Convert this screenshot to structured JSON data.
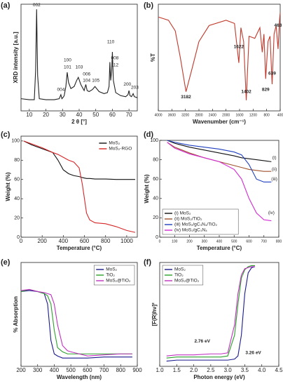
{
  "chart_data": [
    {
      "type": "line",
      "panel": "(a)",
      "xlabel": "2 θ [°]",
      "ylabel": "XRD intensity [a.u.]",
      "xlim": [
        5,
        75
      ],
      "xticks": [
        10,
        20,
        30,
        40,
        50,
        60,
        70
      ],
      "ylim": [
        0,
        105
      ],
      "x": [
        5,
        10,
        13,
        13.8,
        14.4,
        15,
        16,
        20,
        25,
        28,
        29,
        29.6,
        30.2,
        31,
        32,
        32.8,
        33.6,
        35,
        37,
        38.5,
        39.5,
        41,
        43,
        44,
        44.8,
        46,
        48,
        49.5,
        52,
        55,
        57,
        58,
        58.5,
        59,
        59.6,
        60,
        60.6,
        62,
        65,
        68,
        69.4,
        70,
        70.6,
        71.5,
        72.5,
        73.2,
        75
      ],
      "series": [
        {
          "name": "XRD",
          "color": "#222222",
          "values": [
            12,
            11,
            11,
            40,
            100,
            35,
            12,
            11,
            11,
            12,
            16,
            12,
            13,
            15,
            24,
            38,
            28,
            22,
            24,
            30,
            33,
            26,
            20,
            26,
            20,
            19,
            21,
            24,
            19,
            17,
            18,
            24,
            48,
            30,
            40,
            58,
            30,
            18,
            15,
            14,
            16,
            20,
            15,
            14,
            17,
            14,
            13
          ]
        }
      ],
      "annotations": [
        {
          "text": "002",
          "x": 14.4,
          "y": 104
        },
        {
          "text": "004",
          "x": 29,
          "y": 21
        },
        {
          "text": "100",
          "x": 33,
          "y": 50
        },
        {
          "text": "101",
          "x": 33,
          "y": 43
        },
        {
          "text": "103",
          "x": 40,
          "y": 43
        },
        {
          "text": "006",
          "x": 44.5,
          "y": 36
        },
        {
          "text": "104",
          "x": 44.5,
          "y": 30
        },
        {
          "text": "105",
          "x": 50,
          "y": 30
        },
        {
          "text": "110",
          "x": 59,
          "y": 68
        },
        {
          "text": "008",
          "x": 61.5,
          "y": 52
        },
        {
          "text": "112",
          "x": 61.5,
          "y": 45
        },
        {
          "text": "200",
          "x": 69,
          "y": 26
        },
        {
          "text": "203",
          "x": 73.5,
          "y": 23
        }
      ]
    },
    {
      "type": "line",
      "panel": "(b)",
      "xlabel": "Wavenumber (cm⁻¹)",
      "ylabel": "%T",
      "xlim": [
        4000,
        400
      ],
      "xticks": [
        4000,
        3600,
        3200,
        2800,
        2400,
        2000,
        1600,
        1200,
        800,
        400
      ],
      "ylim": [
        0,
        100
      ],
      "x": [
        4000,
        3700,
        3500,
        3350,
        3182,
        3000,
        2800,
        2500,
        2000,
        1750,
        1622,
        1560,
        1480,
        1402,
        1320,
        1150,
        1000,
        930,
        880,
        829,
        760,
        700,
        639,
        580,
        520,
        463,
        420,
        400
      ],
      "series": [
        {
          "name": "FTIR",
          "color": "#c0392b",
          "values": [
            88,
            85,
            75,
            50,
            18,
            40,
            65,
            80,
            85,
            82,
            45,
            78,
            65,
            10,
            70,
            68,
            78,
            55,
            72,
            30,
            65,
            70,
            25,
            72,
            80,
            58,
            85,
            92
          ]
        }
      ],
      "annotations": [
        {
          "text": "3182",
          "x": 3182,
          "y": 13,
          "color": "#1f3fa0"
        },
        {
          "text": "1622",
          "x": 1622,
          "y": 60,
          "color": "#1f3fa0"
        },
        {
          "text": "1402",
          "x": 1402,
          "y": 18,
          "color": "#1f3fa0"
        },
        {
          "text": "829",
          "x": 829,
          "y": 20,
          "color": "#1f3fa0"
        },
        {
          "text": "639",
          "x": 639,
          "y": 35,
          "color": "#1f3fa0"
        },
        {
          "text": "463",
          "x": 463,
          "y": 80,
          "color": "#1f3fa0"
        }
      ]
    },
    {
      "type": "line",
      "panel": "(c)",
      "xlabel": "Temperature (°C)",
      "ylabel": "Weight (%)",
      "xlim": [
        0,
        1100
      ],
      "xticks": [
        0,
        200,
        400,
        600,
        800,
        1000
      ],
      "ylim": [
        0,
        105
      ],
      "yticks": [
        0,
        20,
        40,
        60,
        80,
        100
      ],
      "legend": "upper-right",
      "legend_box": false,
      "x": [
        25,
        100,
        200,
        300,
        350,
        400,
        450,
        500,
        550,
        580,
        600,
        620,
        650,
        700,
        800,
        900,
        1000,
        1080
      ],
      "series": [
        {
          "name": "MoS₂",
          "color": "#111111",
          "values": [
            100,
            96,
            92,
            88,
            80,
            70,
            66,
            64,
            63,
            62,
            61.5,
            61,
            61,
            60.5,
            60.5,
            60,
            60,
            60
          ]
        },
        {
          "name": "MoS₂-RGO",
          "color": "#d62728",
          "values": [
            100,
            97,
            93,
            88,
            86,
            83,
            80,
            78,
            72,
            55,
            40,
            25,
            18,
            15,
            14,
            11,
            7,
            5
          ]
        }
      ]
    },
    {
      "type": "line",
      "panel": "(d)",
      "xlabel": "Temperature (°C)",
      "ylabel": "Weight (%)",
      "xlim": [
        0,
        800
      ],
      "xticks": [
        0,
        100,
        200,
        300,
        400,
        500,
        600,
        700,
        800
      ],
      "ylim": [
        0,
        100
      ],
      "yticks": [
        0,
        20,
        40,
        60,
        80,
        100
      ],
      "legend": "lower-left",
      "legend_box": true,
      "x": [
        50,
        100,
        200,
        300,
        400,
        500,
        550,
        600,
        650,
        700,
        750
      ],
      "series": [
        {
          "name": "(i) MoS₂",
          "color": "#111111",
          "values": [
            100,
            97,
            93,
            90,
            87,
            84,
            82,
            81,
            80,
            79,
            78
          ]
        },
        {
          "name": "(ii) MoS₂/TiO₂",
          "color": "#a0522d",
          "values": [
            98,
            93,
            87,
            82,
            78,
            74,
            72,
            70,
            69,
            68,
            68
          ]
        },
        {
          "name": "(iii) MoS₂/gC₃N₄/TiO₂",
          "color": "#1f3fbf",
          "values": [
            100,
            98,
            95,
            93,
            91,
            88,
            85,
            75,
            60,
            57,
            57
          ]
        },
        {
          "name": "(iv) MoS₂/gC₃N₄",
          "color": "#d22ad2",
          "values": [
            98,
            92,
            86,
            82,
            78,
            70,
            60,
            40,
            25,
            18,
            17
          ]
        }
      ],
      "annotations": [
        {
          "text": "(i)",
          "x": 770,
          "y": 82
        },
        {
          "text": "(ii)",
          "x": 770,
          "y": 70
        },
        {
          "text": "(iii)",
          "x": 770,
          "y": 60
        },
        {
          "text": "(iv)",
          "x": 750,
          "y": 25
        }
      ]
    },
    {
      "type": "line",
      "panel": "(e)",
      "xlabel": "Wavelength (nm)",
      "ylabel": "% Absorption",
      "xlim": [
        200,
        900
      ],
      "xticks": [
        200,
        300,
        400,
        500,
        600,
        700,
        800,
        900
      ],
      "ylim": [
        0,
        100
      ],
      "legend": "upper-right",
      "legend_box": true,
      "x": [
        200,
        250,
        300,
        340,
        360,
        380,
        400,
        420,
        450,
        480,
        500,
        550,
        600,
        700,
        800,
        870
      ],
      "series": [
        {
          "name": "MoS₂",
          "color": "#1a1a8c",
          "values": [
            72,
            73,
            72,
            70,
            60,
            25,
            12,
            10,
            8,
            8,
            8,
            8,
            8,
            9,
            9,
            9
          ]
        },
        {
          "name": "TiO₂",
          "color": "#2ca02c",
          "values": [
            72,
            74,
            72,
            70,
            68,
            60,
            35,
            18,
            14,
            12,
            12,
            12,
            12,
            12,
            12,
            12
          ]
        },
        {
          "name": "MoS₂@TiO₂",
          "color": "#c030c0",
          "values": [
            73,
            74,
            72,
            71,
            70,
            69,
            60,
            40,
            20,
            15,
            14,
            12,
            10,
            11,
            12,
            12
          ]
        }
      ]
    },
    {
      "type": "line",
      "panel": "(f)",
      "xlabel": "Photon energy (eV)",
      "ylabel": "[F(R)hν]²",
      "xlim": [
        1.0,
        4.5
      ],
      "xticks": [
        {
          "value": 1,
          "label": "1.0"
        },
        1.5,
        {
          "value": 2,
          "label": "2.0"
        },
        2.5,
        {
          "value": 3,
          "label": "3.0"
        },
        3.5,
        {
          "value": 4,
          "label": "4.0"
        },
        4.5
      ],
      "ylim": [
        0,
        100
      ],
      "legend": "upper-left",
      "legend_box": true,
      "x": [
        1.2,
        1.5,
        2.0,
        2.5,
        2.8,
        3.0,
        3.2,
        3.3,
        3.4,
        3.5,
        3.6,
        3.7,
        3.8
      ],
      "series": [
        {
          "name": "MoS₂",
          "color": "#1a1a8c",
          "values": [
            5,
            6,
            6,
            6,
            6,
            6,
            7,
            10,
            30,
            70,
            90,
            95,
            96
          ]
        },
        {
          "name": "TiO₂",
          "color": "#2ca02c",
          "values": [
            8,
            9,
            9,
            9,
            9,
            10,
            30,
            60,
            85,
            93,
            96,
            97,
            97
          ]
        },
        {
          "name": "MoS₂@TiO₂",
          "color": "#c030c0",
          "values": [
            10,
            11,
            11,
            12,
            12,
            13,
            40,
            70,
            88,
            94,
            95,
            96,
            96
          ]
        }
      ],
      "annotations": [
        {
          "text": "2.76 eV",
          "x": 2.25,
          "y": 24,
          "color": "#c030c0"
        },
        {
          "text": "3.26 eV",
          "x": 3.75,
          "y": 13,
          "color": "#1a1a8c"
        }
      ]
    }
  ]
}
